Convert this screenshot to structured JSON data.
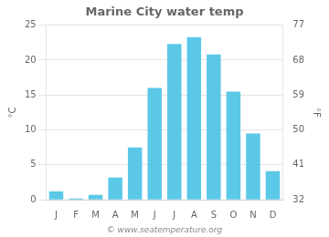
{
  "chart_data": {
    "type": "bar",
    "title": "Marine City water temp",
    "categories": [
      "J",
      "F",
      "M",
      "A",
      "M",
      "J",
      "J",
      "A",
      "S",
      "O",
      "N",
      "D"
    ],
    "values": [
      1.2,
      0.2,
      0.7,
      3.2,
      7.5,
      16.0,
      22.3,
      23.3,
      20.8,
      15.5,
      9.5,
      4.1
    ],
    "color": "#5bc8e8",
    "ylabel": "°C",
    "ylim": [
      0,
      25
    ],
    "yticks": [
      0,
      5,
      10,
      15,
      20,
      25
    ],
    "y2label": "°F",
    "y2lim": [
      32,
      77
    ],
    "y2ticks": [
      32,
      41,
      50,
      59,
      68,
      77
    ],
    "grid": true,
    "annotations": [
      "© www.seatemperature.org"
    ]
  }
}
